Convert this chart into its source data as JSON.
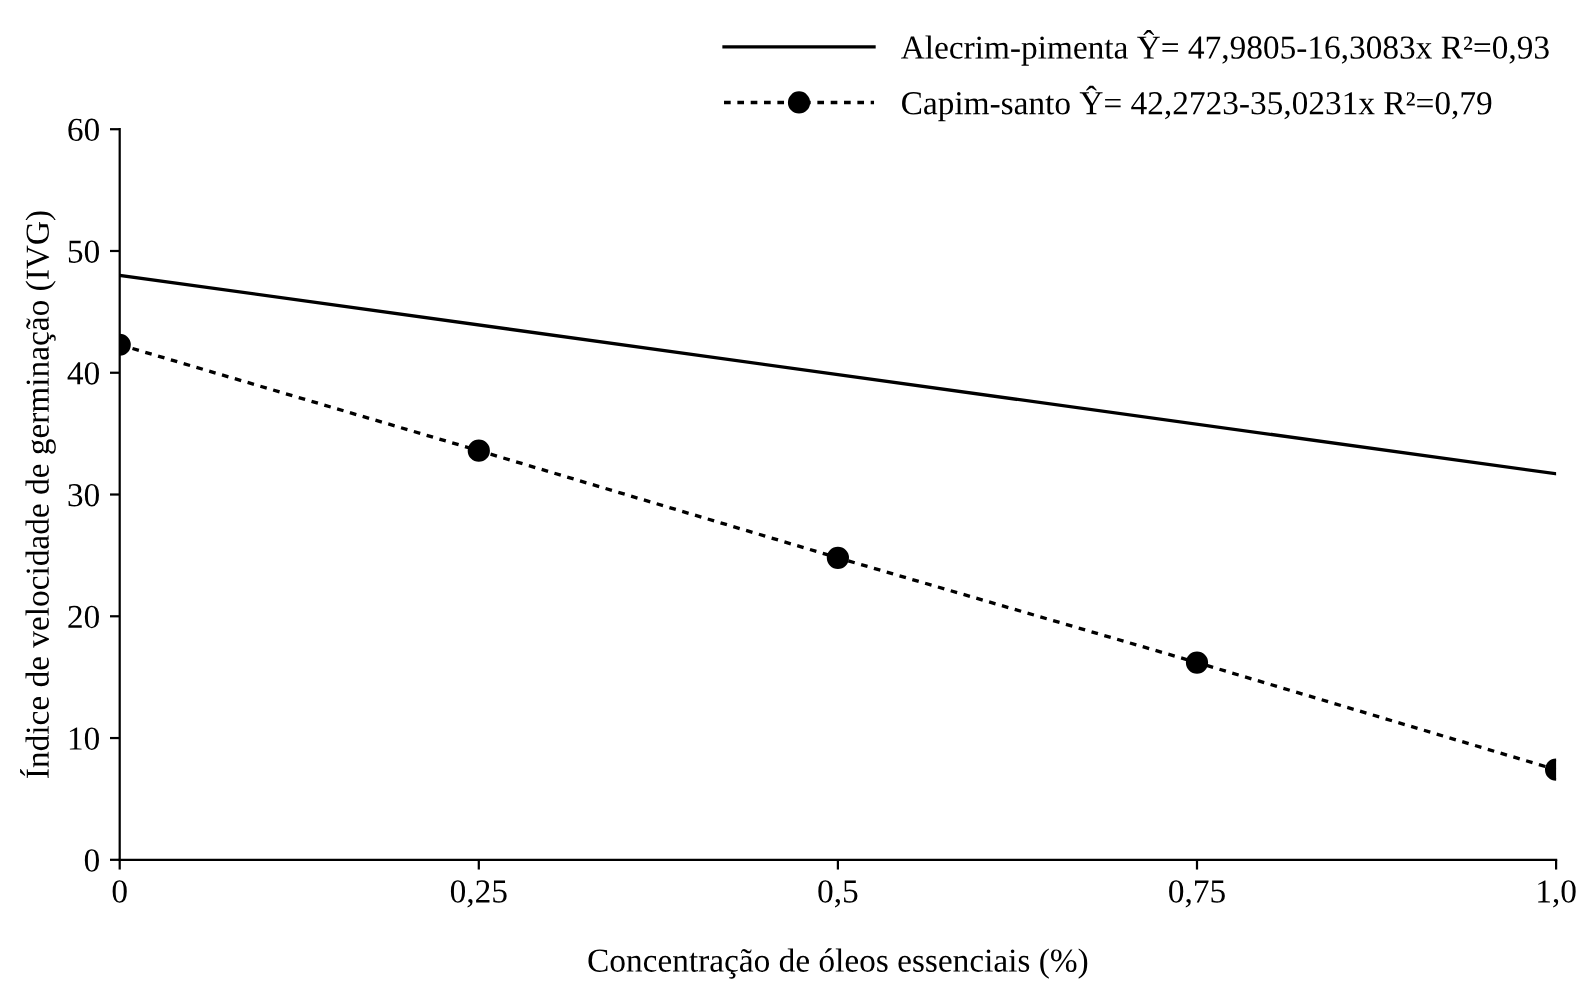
{
  "chart_data": {
    "type": "line",
    "xlabel": "Concentração de óleos essenciais (%)",
    "ylabel": "Índice de velocidade de germinação (IVG)",
    "xlim": [
      0,
      1.0
    ],
    "xticks": [
      0,
      {
        "value": 0.25,
        "label": "0,25"
      },
      {
        "value": 0.5,
        "label": "0,5"
      },
      {
        "value": 0.75,
        "label": "0,75"
      },
      {
        "value": 1.0,
        "label": "1,0"
      }
    ],
    "ylim": [
      0,
      60
    ],
    "yticks": [
      0,
      10,
      20,
      30,
      40,
      50,
      60
    ],
    "grid": false,
    "legend": "top right",
    "series": [
      {
        "name": "Alecrim-pimenta Ŷ= 47,9805-16,3083x R²=0,93",
        "color": "#000000",
        "x": [
          0,
          1.0
        ],
        "values": [
          48.0,
          31.7
        ],
        "marker": "none",
        "line_style": "solid"
      },
      {
        "name": "Capim-santo Ŷ= 42,2723-35,0231x R²=0,79",
        "color": "#000000",
        "x": [
          0,
          0.25,
          0.5,
          0.75,
          1.0
        ],
        "values": [
          42.3,
          33.6,
          24.8,
          16.2,
          7.4
        ],
        "marker": "circle",
        "line_style": "dotted"
      }
    ]
  }
}
